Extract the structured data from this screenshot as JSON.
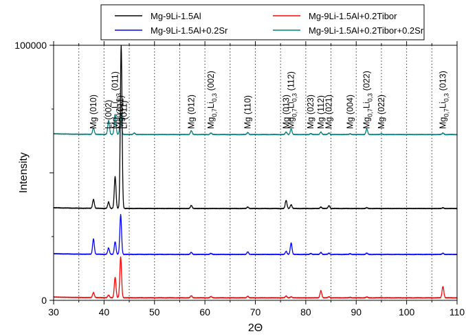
{
  "chart_data": {
    "type": "line",
    "xlabel": "2Θ",
    "ylabel": "Intensity",
    "xlim": [
      30,
      110
    ],
    "ylim": [
      0,
      100000
    ],
    "x_ticks": [
      "30",
      "40",
      "50",
      "60",
      "70",
      "80",
      "90",
      "100",
      "110"
    ],
    "y_ticks": [
      "0",
      "100000"
    ],
    "grid": "vertical dotted lines every 5",
    "legend": {
      "placement": "top",
      "entries": [
        {
          "name": "Mg-9Li-1.5Al",
          "color": "#000000"
        },
        {
          "name": "Mg-9Li-1.5Al+0.2Tibor",
          "color": "#ff0000"
        },
        {
          "name": "Mg-9Li-1.5Al+0.2Sr",
          "color": "#0000ff"
        },
        {
          "name": "Mg-9Li-1.5Al+0.2Tibor+0.2Sr",
          "color": "#008080"
        }
      ]
    },
    "series": [
      {
        "name": "Mg-9Li-1.5Al+0.2Tibor+0.2Sr",
        "color": "#008080",
        "baseline": 65000,
        "peaks": [
          [
            37.9,
            2500
          ],
          [
            40.9,
            5500
          ],
          [
            42.2,
            8000
          ],
          [
            43.3,
            8500
          ],
          [
            46,
            600
          ],
          [
            57.3,
            1500
          ],
          [
            61.2,
            600
          ],
          [
            68.5,
            800
          ],
          [
            76.1,
            1000
          ],
          [
            77.1,
            2200
          ],
          [
            81,
            400
          ],
          [
            83,
            1000
          ],
          [
            84.6,
            600
          ],
          [
            88.8,
            300
          ],
          [
            92.1,
            2200
          ],
          [
            95,
            300
          ],
          [
            107.2,
            600
          ]
        ]
      },
      {
        "name": "Mg-9Li-1.5Al",
        "color": "#000000",
        "baseline": 36000,
        "peaks": [
          [
            37.9,
            3500
          ],
          [
            40.9,
            2500
          ],
          [
            42.2,
            12500
          ],
          [
            43.4,
            64000
          ],
          [
            57.3,
            1200
          ],
          [
            68.5,
            600
          ],
          [
            76.1,
            3200
          ],
          [
            77.1,
            1500
          ],
          [
            83,
            600
          ],
          [
            84.6,
            1100
          ],
          [
            92.1,
            300
          ],
          [
            107.2,
            300
          ]
        ]
      },
      {
        "name": "Mg-9Li-1.5Al+0.2Sr",
        "color": "#0000ff",
        "baseline": 18000,
        "peaks": [
          [
            37.9,
            6000
          ],
          [
            40.9,
            2500
          ],
          [
            42.2,
            5000
          ],
          [
            43.3,
            15500
          ],
          [
            57.3,
            800
          ],
          [
            61.2,
            400
          ],
          [
            68.5,
            1000
          ],
          [
            76.1,
            1200
          ],
          [
            77.1,
            4500
          ],
          [
            81,
            400
          ],
          [
            83,
            800
          ],
          [
            84.6,
            500
          ],
          [
            88.8,
            300
          ],
          [
            92.1,
            500
          ],
          [
            107.2,
            500
          ]
        ]
      },
      {
        "name": "Mg-9Li-1.5Al+0.2Tibor",
        "color": "#ff0000",
        "baseline": 1000,
        "peaks": [
          [
            37.9,
            2000
          ],
          [
            40.9,
            1000
          ],
          [
            42.2,
            8000
          ],
          [
            43.3,
            16000
          ],
          [
            57.3,
            800
          ],
          [
            61.2,
            500
          ],
          [
            68.5,
            600
          ],
          [
            76.1,
            700
          ],
          [
            77.1,
            400
          ],
          [
            83,
            2800
          ],
          [
            84.6,
            400
          ],
          [
            88.8,
            200
          ],
          [
            92.1,
            300
          ],
          [
            95,
            200
          ],
          [
            107.2,
            4500
          ]
        ]
      }
    ],
    "annotations": [
      {
        "text": "Mg (010)",
        "x": 37.9
      },
      {
        "text": "Li (002)",
        "x": 40.9
      },
      {
        "text": "Mg",
        "sub": "0,7",
        "text2": "Li",
        "sub2": "0,3",
        "text3": " (011)",
        "x": 42.2,
        "arrow": true
      },
      {
        "text": "Mg (011)",
        "x": 43.3
      },
      {
        "text": "Li (011)",
        "x": 44.0,
        "arrow": true
      },
      {
        "text": "Mg (012)",
        "x": 57.3
      },
      {
        "text": "Mg",
        "sub": "0,7",
        "text2": "Li",
        "sub2": "0,3",
        "text3": " (002)",
        "x": 61.2
      },
      {
        "text": "Mg (110)",
        "x": 68.5
      },
      {
        "text": "Mg (013)",
        "x": 76.1,
        "arrow": true
      },
      {
        "text": "Mg",
        "sub": "0,7",
        "text2": "Li",
        "sub2": "0,3",
        "text3": " (112)",
        "x": 77.1
      },
      {
        "text": "Mg (023)",
        "x": 81.0
      },
      {
        "text": "Mg (112)",
        "x": 83.0
      },
      {
        "text": "Mg (021)",
        "x": 84.6
      },
      {
        "text": "Mg (004)",
        "x": 88.8
      },
      {
        "text": "Mg",
        "sub": "0,7",
        "text2": "Li",
        "sub2": "0,3",
        "text3": " (022)",
        "x": 92.1
      },
      {
        "text": "Mg (022)",
        "x": 95.0
      },
      {
        "text": "Mg",
        "sub": "0,7",
        "text2": "Li",
        "sub2": "0,3",
        "text3": " (013)",
        "x": 107.2
      }
    ]
  }
}
